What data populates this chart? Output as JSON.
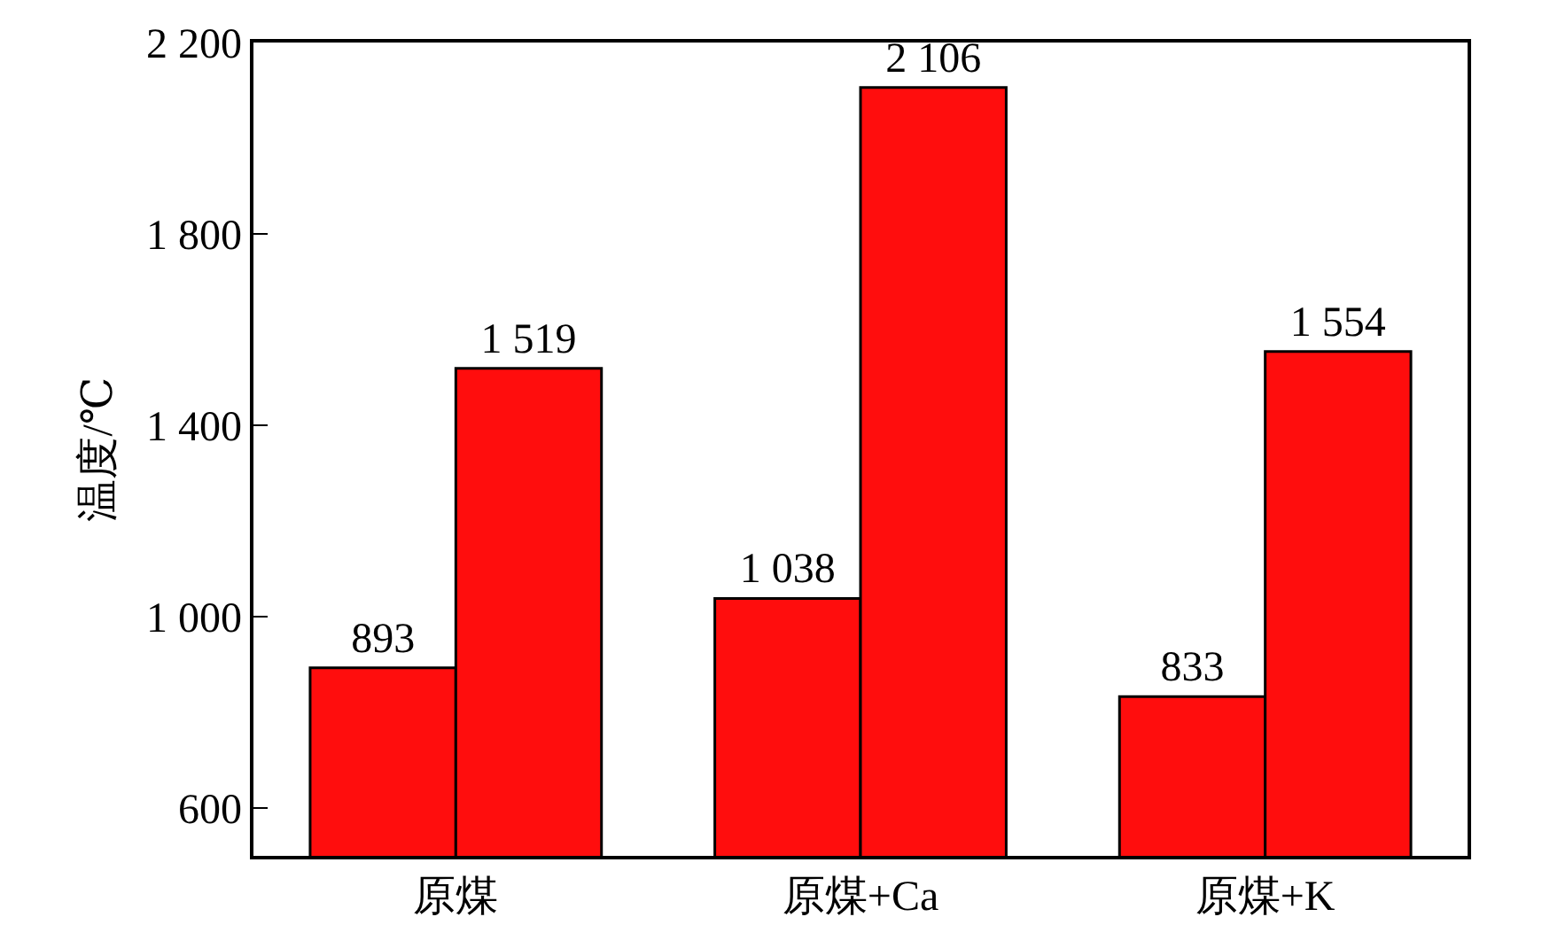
{
  "chart_data": {
    "type": "bar",
    "ylabel": "温度/℃",
    "categories": [
      "原煤",
      "原煤+Ca",
      "原煤+K"
    ],
    "series": [
      {
        "color": "#ff0d0d",
        "values": [
          893,
          1038,
          833
        ],
        "value_labels": [
          "893",
          "1 038",
          "833"
        ]
      },
      {
        "color": "#ff0d0d",
        "values": [
          1519,
          2106,
          1554
        ],
        "value_labels": [
          "1 519",
          "2 106",
          "1 554"
        ]
      }
    ],
    "ylim": [
      500,
      2200
    ],
    "yticks": [
      600,
      {
        "value": 1000,
        "label": "1 000"
      },
      {
        "value": 1400,
        "label": "1 400"
      },
      {
        "value": 1800,
        "label": "1 800"
      },
      {
        "value": 2200,
        "label": "2 200"
      }
    ],
    "grid": false
  }
}
